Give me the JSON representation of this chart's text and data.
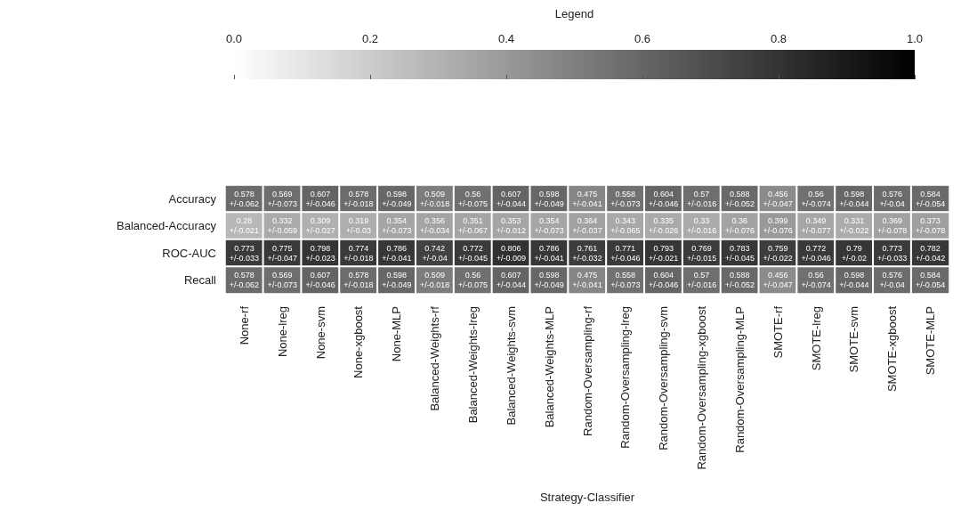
{
  "chart_data": {
    "type": "heatmap",
    "xlabel": "Strategy-Classifier",
    "clabel": "Legend",
    "categories": [
      "None-rf",
      "None-lreg",
      "None-svm",
      "None-xgboost",
      "None-MLP",
      "Balanced-Weights-rf",
      "Balanced-Weights-lreg",
      "Balanced-Weights-svm",
      "Balanced-Weights-MLP",
      "Random-Oversampling-rf",
      "Random-Oversampling-lreg",
      "Random-Oversampling-svm",
      "Random-Oversampling-xgboost",
      "Random-Oversampling-MLP",
      "SMOTE-rf",
      "SMOTE-lreg",
      "SMOTE-svm",
      "SMOTE-xgboost",
      "SMOTE-MLP"
    ],
    "y_categories": [
      "Accuracy",
      "Balanced-Accuracy",
      "ROC-AUC",
      "Recall"
    ],
    "cells": [
      [
        0.578,
        0.569,
        0.607,
        0.578,
        0.598,
        0.509,
        0.56,
        0.607,
        0.598,
        0.475,
        0.558,
        0.604,
        0.57,
        0.588,
        0.456,
        0.56,
        0.598,
        0.576,
        0.584
      ],
      [
        0.28,
        0.332,
        0.309,
        0.319,
        0.354,
        0.356,
        0.351,
        0.353,
        0.354,
        0.364,
        0.343,
        0.335,
        0.33,
        0.36,
        0.399,
        0.349,
        0.331,
        0.369,
        0.373
      ],
      [
        0.773,
        0.775,
        0.798,
        0.774,
        0.786,
        0.742,
        0.772,
        0.806,
        0.786,
        0.761,
        0.771,
        0.793,
        0.769,
        0.783,
        0.759,
        0.772,
        0.79,
        0.773,
        0.782
      ],
      [
        0.578,
        0.569,
        0.607,
        0.578,
        0.598,
        0.509,
        0.56,
        0.607,
        0.598,
        0.475,
        0.558,
        0.604,
        0.57,
        0.588,
        0.456,
        0.56,
        0.598,
        0.576,
        0.584
      ]
    ],
    "cell_labels": [
      [
        "0.578\n+/-0.062",
        "0.569\n+/-0.073",
        "0.607\n+/-0.046",
        "0.578\n+/-0.018",
        "0.598\n+/-0.049",
        "0.509\n+/-0.018",
        "0.56\n+/-0.075",
        "0.607\n+/-0.044",
        "0.598\n+/-0.049",
        "0.475\n+/-0.041",
        "0.558\n+/-0.073",
        "0.604\n+/-0.046",
        "0.57\n+/-0.016",
        "0.588\n+/-0.052",
        "0.456\n+/-0.047",
        "0.56\n+/-0.074",
        "0.598\n+/-0.044",
        "0.576\n+/-0.04",
        "0.584\n+/-0.054"
      ],
      [
        "0.28\n+/-0.021",
        "0.332\n+/-0.059",
        "0.309\n+/-0.027",
        "0.319\n+/-0.03",
        "0.354\n+/-0.073",
        "0.356\n+/-0.034",
        "0.351\n+/-0.067",
        "0.353\n+/-0.012",
        "0.354\n+/-0.073",
        "0.364\n+/-0.037",
        "0.343\n+/-0.065",
        "0.335\n+/-0.026",
        "0.33\n+/-0.016",
        "0.36\n+/-0.076",
        "0.399\n+/-0.076",
        "0.349\n+/-0.077",
        "0.331\n+/-0.022",
        "0.369\n+/-0.078",
        "0.373\n+/-0.078"
      ],
      [
        "0.773\n+/-0.033",
        "0.775\n+/-0.047",
        "0.798\n+/-0.023",
        "0.774\n+/-0.018",
        "0.786\n+/-0.041",
        "0.742\n+/-0.04",
        "0.772\n+/-0.045",
        "0.806\n+/-0.009",
        "0.786\n+/-0.041",
        "0.761\n+/-0.032",
        "0.771\n+/-0.046",
        "0.793\n+/-0.021",
        "0.769\n+/-0.015",
        "0.783\n+/-0.045",
        "0.759\n+/-0.022",
        "0.772\n+/-0.046",
        "0.79\n+/-0.02",
        "0.773\n+/-0.033",
        "0.782\n+/-0.042"
      ],
      [
        "0.578\n+/-0.062",
        "0.569\n+/-0.073",
        "0.607\n+/-0.046",
        "0.578\n+/-0.018",
        "0.598\n+/-0.049",
        "0.509\n+/-0.018",
        "0.56\n+/-0.075",
        "0.607\n+/-0.044",
        "0.598\n+/-0.049",
        "0.475\n+/-0.041",
        "0.558\n+/-0.073",
        "0.604\n+/-0.046",
        "0.57\n+/-0.016",
        "0.588\n+/-0.052",
        "0.456\n+/-0.047",
        "0.56\n+/-0.074",
        "0.598\n+/-0.044",
        "0.576\n+/-0.04",
        "0.584\n+/-0.054"
      ]
    ],
    "clim": [
      0,
      1
    ],
    "cticks": [
      {
        "value": 0,
        "label": "0.0"
      },
      0.2,
      0.4,
      0.6,
      0.8,
      {
        "value": 1,
        "label": "1.0"
      }
    ]
  }
}
